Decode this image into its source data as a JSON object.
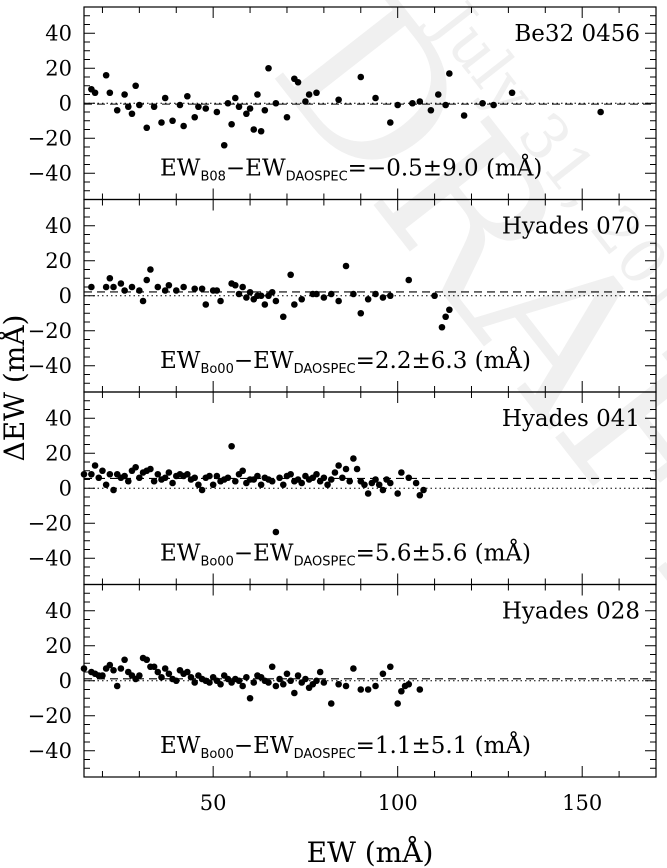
{
  "chart_data": [
    {
      "type": "scatter",
      "label": "Be32 0456",
      "relation_html": [
        "EW",
        "B08",
        "−EW",
        "DAOSPEC",
        "=−0.5±9.0  (mÅ)"
      ],
      "mean": -0.5,
      "ylim": [
        -55,
        55
      ],
      "points": [
        [
          17,
          8
        ],
        [
          18,
          6
        ],
        [
          21,
          16
        ],
        [
          22,
          6
        ],
        [
          24,
          -4
        ],
        [
          26,
          5
        ],
        [
          27,
          -2
        ],
        [
          28,
          -6
        ],
        [
          29,
          10
        ],
        [
          30,
          -1
        ],
        [
          32,
          -14
        ],
        [
          34,
          -2
        ],
        [
          36,
          -11
        ],
        [
          37,
          3
        ],
        [
          39,
          -10
        ],
        [
          41,
          -1
        ],
        [
          42,
          -13
        ],
        [
          43,
          4
        ],
        [
          45,
          -8
        ],
        [
          46,
          -2
        ],
        [
          48,
          -3
        ],
        [
          51,
          -5
        ],
        [
          53,
          -24
        ],
        [
          54,
          0
        ],
        [
          55,
          -12
        ],
        [
          56,
          3
        ],
        [
          57,
          -2
        ],
        [
          59,
          -6
        ],
        [
          60,
          -3
        ],
        [
          61,
          -15
        ],
        [
          62,
          5
        ],
        [
          63,
          -16
        ],
        [
          64,
          -4
        ],
        [
          65,
          20
        ],
        [
          67,
          0
        ],
        [
          70,
          -8
        ],
        [
          72,
          14
        ],
        [
          73,
          12
        ],
        [
          75,
          1
        ],
        [
          76,
          5
        ],
        [
          78,
          6
        ],
        [
          84,
          2
        ],
        [
          90,
          15
        ],
        [
          94,
          3
        ],
        [
          98,
          -11
        ],
        [
          100,
          -1
        ],
        [
          104,
          0
        ],
        [
          106,
          1
        ],
        [
          109,
          -4
        ],
        [
          111,
          5
        ],
        [
          113,
          -1
        ],
        [
          114,
          17
        ],
        [
          118,
          -7
        ],
        [
          123,
          0
        ],
        [
          126,
          -1
        ],
        [
          131,
          6
        ],
        [
          155,
          -5
        ]
      ]
    },
    {
      "type": "scatter",
      "label": "Hyades 070",
      "relation_html": [
        "EW",
        "Bo00",
        "−EW",
        "DAOSPEC",
        "=2.2±6.3  (mÅ)"
      ],
      "mean": 2.2,
      "ylim": [
        -55,
        55
      ],
      "points": [
        [
          17,
          5
        ],
        [
          21,
          5
        ],
        [
          22,
          10
        ],
        [
          23,
          5
        ],
        [
          25,
          7
        ],
        [
          26,
          3
        ],
        [
          28,
          5
        ],
        [
          30,
          3
        ],
        [
          31,
          -3
        ],
        [
          32,
          9
        ],
        [
          33,
          15
        ],
        [
          35,
          5
        ],
        [
          37,
          3
        ],
        [
          38,
          6
        ],
        [
          40,
          3
        ],
        [
          42,
          5
        ],
        [
          45,
          4
        ],
        [
          47,
          4
        ],
        [
          48,
          -5
        ],
        [
          50,
          3
        ],
        [
          51,
          3
        ],
        [
          52,
          -3
        ],
        [
          55,
          7
        ],
        [
          56,
          6
        ],
        [
          57,
          1
        ],
        [
          58,
          5
        ],
        [
          59,
          -1
        ],
        [
          60,
          2
        ],
        [
          61,
          -2
        ],
        [
          62,
          0
        ],
        [
          63,
          0
        ],
        [
          64,
          -5
        ],
        [
          65,
          0
        ],
        [
          66,
          2
        ],
        [
          67,
          -3
        ],
        [
          69,
          -12
        ],
        [
          71,
          12
        ],
        [
          72,
          -5
        ],
        [
          74,
          -2
        ],
        [
          77,
          1
        ],
        [
          78,
          1
        ],
        [
          80,
          -1
        ],
        [
          82,
          1
        ],
        [
          84,
          -3
        ],
        [
          86,
          17
        ],
        [
          88,
          1
        ],
        [
          90,
          -10
        ],
        [
          92,
          -2
        ],
        [
          94,
          1
        ],
        [
          96,
          -1
        ],
        [
          98,
          0
        ],
        [
          103,
          9
        ],
        [
          110,
          0
        ],
        [
          112,
          -18
        ],
        [
          113,
          -12
        ],
        [
          114,
          -8
        ]
      ]
    },
    {
      "type": "scatter",
      "label": "Hyades 041",
      "relation_html": [
        "EW",
        "Bo00",
        "−EW",
        "DAOSPEC",
        "=5.6±5.6  (mÅ)"
      ],
      "mean": 5.6,
      "ylim": [
        -55,
        55
      ],
      "points": [
        [
          15,
          8
        ],
        [
          17,
          8
        ],
        [
          18,
          13
        ],
        [
          19,
          6
        ],
        [
          20,
          10
        ],
        [
          21,
          2
        ],
        [
          22,
          8
        ],
        [
          23,
          -1
        ],
        [
          24,
          8
        ],
        [
          25,
          6
        ],
        [
          26,
          7
        ],
        [
          27,
          4
        ],
        [
          28,
          10
        ],
        [
          29,
          12
        ],
        [
          30,
          6
        ],
        [
          31,
          9
        ],
        [
          32,
          10
        ],
        [
          33,
          11
        ],
        [
          34,
          4
        ],
        [
          35,
          8
        ],
        [
          36,
          5
        ],
        [
          37,
          6
        ],
        [
          38,
          9
        ],
        [
          39,
          3
        ],
        [
          40,
          7
        ],
        [
          41,
          8
        ],
        [
          42,
          7
        ],
        [
          43,
          8
        ],
        [
          44,
          5
        ],
        [
          45,
          6
        ],
        [
          46,
          2
        ],
        [
          47,
          -1
        ],
        [
          48,
          6
        ],
        [
          49,
          7
        ],
        [
          50,
          2
        ],
        [
          51,
          7
        ],
        [
          52,
          4
        ],
        [
          53,
          5
        ],
        [
          54,
          6
        ],
        [
          55,
          24
        ],
        [
          56,
          4
        ],
        [
          57,
          8
        ],
        [
          58,
          10
        ],
        [
          59,
          3
        ],
        [
          60,
          5
        ],
        [
          61,
          5
        ],
        [
          62,
          7
        ],
        [
          63,
          2
        ],
        [
          64,
          6
        ],
        [
          65,
          5
        ],
        [
          66,
          4
        ],
        [
          67,
          -25
        ],
        [
          68,
          6
        ],
        [
          69,
          2
        ],
        [
          70,
          7
        ],
        [
          71,
          8
        ],
        [
          72,
          4
        ],
        [
          73,
          5
        ],
        [
          74,
          3
        ],
        [
          75,
          7
        ],
        [
          76,
          5
        ],
        [
          77,
          6
        ],
        [
          78,
          8
        ],
        [
          79,
          4
        ],
        [
          80,
          6
        ],
        [
          81,
          2
        ],
        [
          82,
          5
        ],
        [
          83,
          9
        ],
        [
          84,
          13
        ],
        [
          85,
          6
        ],
        [
          86,
          11
        ],
        [
          87,
          4
        ],
        [
          88,
          17
        ],
        [
          89,
          11
        ],
        [
          90,
          4
        ],
        [
          91,
          2
        ],
        [
          92,
          -3
        ],
        [
          93,
          3
        ],
        [
          94,
          5
        ],
        [
          95,
          2
        ],
        [
          96,
          -1
        ],
        [
          97,
          5
        ],
        [
          98,
          3
        ],
        [
          100,
          -3
        ],
        [
          101,
          9
        ],
        [
          103,
          6
        ],
        [
          105,
          3
        ],
        [
          106,
          -4
        ],
        [
          107,
          -1
        ]
      ]
    },
    {
      "type": "scatter",
      "label": "Hyades 028",
      "relation_html": [
        "EW",
        "Bo00",
        "−EW",
        "DAOSPEC",
        "=1.1±5.1  (mÅ)"
      ],
      "mean": 1.1,
      "ylim": [
        -55,
        55
      ],
      "points": [
        [
          15,
          7
        ],
        [
          17,
          5
        ],
        [
          18,
          4
        ],
        [
          19,
          3
        ],
        [
          20,
          3
        ],
        [
          21,
          7
        ],
        [
          22,
          9
        ],
        [
          23,
          6
        ],
        [
          24,
          -3
        ],
        [
          25,
          7
        ],
        [
          26,
          12
        ],
        [
          27,
          5
        ],
        [
          28,
          3
        ],
        [
          29,
          1
        ],
        [
          30,
          3
        ],
        [
          31,
          13
        ],
        [
          32,
          12
        ],
        [
          33,
          8
        ],
        [
          34,
          8
        ],
        [
          35,
          5
        ],
        [
          36,
          2
        ],
        [
          37,
          7
        ],
        [
          38,
          4
        ],
        [
          39,
          1
        ],
        [
          40,
          0
        ],
        [
          41,
          6
        ],
        [
          42,
          4
        ],
        [
          43,
          5
        ],
        [
          44,
          2
        ],
        [
          45,
          -1
        ],
        [
          46,
          3
        ],
        [
          47,
          1
        ],
        [
          48,
          0
        ],
        [
          49,
          -1
        ],
        [
          50,
          2
        ],
        [
          51,
          0
        ],
        [
          52,
          -2
        ],
        [
          53,
          3
        ],
        [
          54,
          1
        ],
        [
          55,
          -1
        ],
        [
          56,
          1
        ],
        [
          57,
          0
        ],
        [
          58,
          -3
        ],
        [
          59,
          2
        ],
        [
          60,
          -10
        ],
        [
          61,
          -1
        ],
        [
          62,
          3
        ],
        [
          63,
          2
        ],
        [
          64,
          0
        ],
        [
          65,
          -1
        ],
        [
          66,
          8
        ],
        [
          67,
          -3
        ],
        [
          68,
          1
        ],
        [
          69,
          -2
        ],
        [
          70,
          4
        ],
        [
          71,
          0
        ],
        [
          72,
          -7
        ],
        [
          73,
          3
        ],
        [
          74,
          -1
        ],
        [
          75,
          1
        ],
        [
          76,
          -4
        ],
        [
          77,
          -2
        ],
        [
          78,
          0
        ],
        [
          79,
          5
        ],
        [
          80,
          -1
        ],
        [
          82,
          -13
        ],
        [
          84,
          -2
        ],
        [
          86,
          -3
        ],
        [
          88,
          7
        ],
        [
          90,
          -5
        ],
        [
          92,
          -5
        ],
        [
          94,
          -3
        ],
        [
          96,
          4
        ],
        [
          98,
          8
        ],
        [
          100,
          -13
        ],
        [
          101,
          -6
        ],
        [
          102,
          -3
        ],
        [
          103,
          -2
        ],
        [
          106,
          -5
        ]
      ]
    }
  ],
  "x_axis": {
    "label": "EW  (mÅ)",
    "xlim": [
      15,
      170
    ],
    "tick_labels": [
      "50",
      "100",
      "150"
    ],
    "tick_values": [
      50,
      100,
      150
    ]
  },
  "y_axis": {
    "label": "ΔEW  (mÅ)",
    "tick_labels": [
      "−40",
      "−20",
      "0",
      "20",
      "40"
    ],
    "tick_values": [
      -40,
      -20,
      0,
      20,
      40
    ]
  },
  "watermark": {
    "text_big": "DRAFT",
    "text_small": "July 31, 2014"
  },
  "colors": {
    "ink": "#000000",
    "watermark": "#f0f0f0"
  }
}
